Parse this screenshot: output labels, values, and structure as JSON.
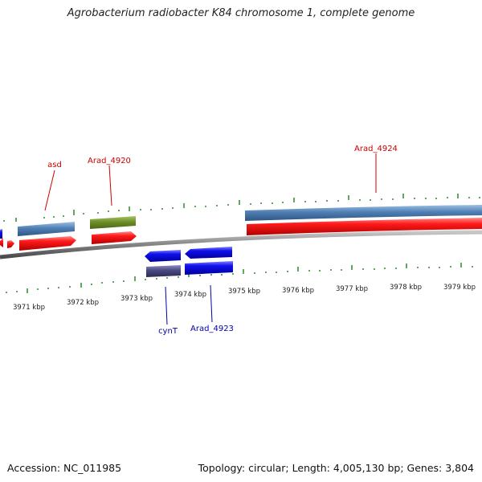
{
  "title": "Agrobacterium radiobacter K84 chromosome 1, complete genome",
  "footer": {
    "accession": "Accession: NC_011985",
    "summary": "Topology: circular; Length: 4,005,130 bp; Genes: 3,804"
  },
  "colors": {
    "backbone": "#808080",
    "forward_cds": "#ff1a1a",
    "reverse_cds": "#1010ee",
    "steelblue_gene": "#4f7fb4",
    "olive_gene": "#6f8f28",
    "slate_gene": "#484880",
    "ticks": "#2a8a2a",
    "forward_label": "#cc0000",
    "reverse_label": "#0000aa"
  },
  "axis": {
    "unit_labels": [
      "3971 kbp",
      "3972 kbp",
      "3973 kbp",
      "3974 kbp",
      "3975 kbp",
      "3976 kbp",
      "3977 kbp",
      "3978 kbp",
      "3979 kbp"
    ]
  },
  "gene_labels": {
    "asd": "asd",
    "arad_4920": "Arad_4920",
    "arad_4924": "Arad_4924",
    "cynt": "cynT",
    "arad_4923": "Arad_4923"
  }
}
